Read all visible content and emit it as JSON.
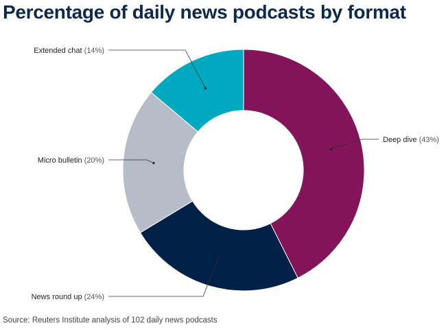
{
  "colors": {
    "deep_dive": "#831459",
    "news_round_up": "#002147",
    "micro_bulletin": "#b6bcc8",
    "extended_chat": "#00a9bf"
  },
  "chart_data": {
    "type": "pie",
    "donut": true,
    "title": "Percentage of daily news podcasts by format",
    "unit": "%",
    "slices": [
      {
        "label": "Deep dive",
        "value": 43,
        "display": "(43%)",
        "color": "#831459"
      },
      {
        "label": "News round up",
        "value": 24,
        "display": "(24%)",
        "color": "#002147"
      },
      {
        "label": "Micro bulletin",
        "value": 20,
        "display": "(20%)",
        "color": "#b6bcc8"
      },
      {
        "label": "Extended chat",
        "value": 14,
        "display": "(14%)",
        "color": "#00a9bf"
      }
    ],
    "source": "Source: Reuters Institute analysis of 102 daily news podcasts"
  }
}
